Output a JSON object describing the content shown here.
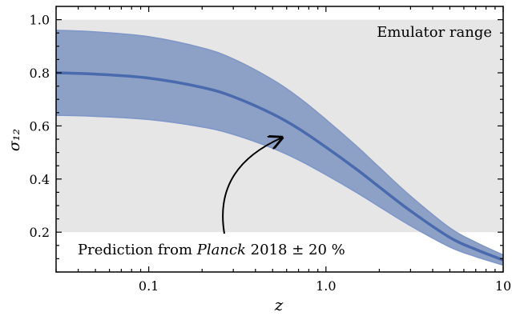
{
  "chart_data": {
    "type": "area",
    "xscale": "log",
    "xlim": [
      0.03,
      10
    ],
    "ylim": [
      0.05,
      1.05
    ],
    "xlabel": "z",
    "ylabel": "σ₁₂",
    "xticks": [
      0.1,
      1.0,
      10
    ],
    "xtick_labels": [
      "0.1",
      "1.0",
      "10"
    ],
    "yticks": [
      0.2,
      0.4,
      0.6,
      0.8,
      1.0
    ],
    "ytick_labels": [
      "0.2",
      "0.4",
      "0.6",
      "0.8",
      "1.0"
    ],
    "emulator_range": {
      "label": "Emulator range",
      "y": [
        0.2,
        1.0
      ],
      "color": "#e6e6e6"
    },
    "series": [
      {
        "label_parts": [
          "Prediction from ",
          "Planck",
          " 2018 ± 20 %"
        ],
        "color": "#4a6aae",
        "band_color": "#8da0c6",
        "x": [
          0.03,
          0.05,
          0.1,
          0.2,
          0.3,
          0.5,
          0.7,
          1.0,
          1.5,
          2.0,
          3.0,
          5.0,
          7.0,
          10.0
        ],
        "y": [
          0.8,
          0.795,
          0.78,
          0.745,
          0.71,
          0.645,
          0.59,
          0.52,
          0.435,
          0.37,
          0.28,
          0.18,
          0.135,
          0.095
        ],
        "lower": [
          0.64,
          0.636,
          0.624,
          0.596,
          0.568,
          0.516,
          0.472,
          0.416,
          0.348,
          0.296,
          0.224,
          0.144,
          0.108,
          0.076
        ],
        "upper": [
          0.96,
          0.954,
          0.936,
          0.894,
          0.852,
          0.774,
          0.708,
          0.624,
          0.522,
          0.444,
          0.336,
          0.216,
          0.162,
          0.114
        ]
      }
    ]
  }
}
